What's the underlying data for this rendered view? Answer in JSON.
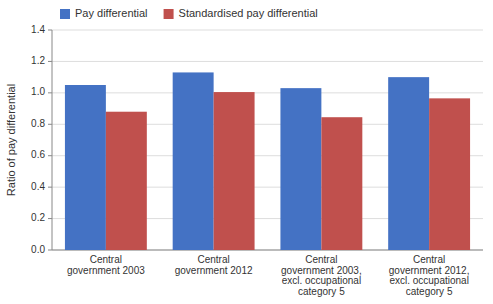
{
  "chart_data": {
    "type": "bar",
    "categories": [
      "Central\ngovernment 2003",
      "Central\ngovernment 2012",
      "Central\ngovernment 2003,\nexcl. occupational\ncategory 5",
      "Central\ngovernment 2012,\nexcl. occupational\ncategory 5"
    ],
    "series": [
      {
        "name": "Pay differential",
        "color": "#4472C4",
        "values": [
          1.05,
          1.13,
          1.03,
          1.1
        ]
      },
      {
        "name": "Standardised pay differential",
        "color": "#C0504D",
        "values": [
          0.88,
          1.005,
          0.845,
          0.965
        ]
      }
    ],
    "ylabel": "Ratio of pay differential",
    "ylim": [
      0,
      1.4
    ],
    "yticks": [
      {
        "value": 0,
        "label": "0.0"
      },
      0.2,
      0.4,
      0.6,
      0.8,
      {
        "value": 1.0,
        "label": "1.0"
      },
      1.2,
      1.4
    ],
    "grid": true,
    "legend": "upper left"
  }
}
